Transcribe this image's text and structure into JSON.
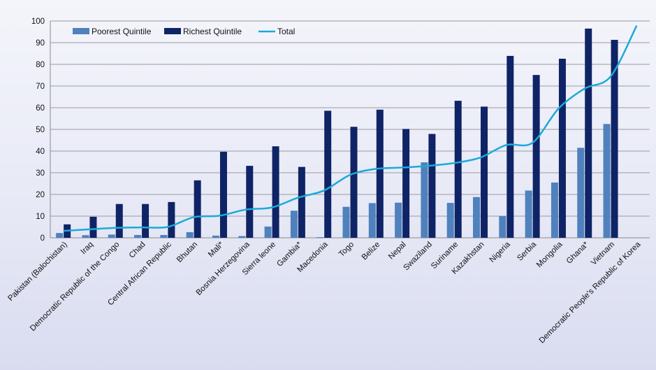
{
  "chart_data": {
    "type": "bar",
    "title": "",
    "xlabel": "",
    "ylabel": "",
    "ylim": [
      0,
      100
    ],
    "yticks": [
      0,
      10,
      20,
      30,
      40,
      50,
      60,
      70,
      80,
      90,
      100
    ],
    "grid": true,
    "legend_position": "top-left",
    "categories": [
      "Pakistan (Balochistan)",
      "Iraq",
      "Democratic Republic of the Congo",
      "Chad",
      "Central African Republic",
      "Bhutan",
      "Mali*",
      "Bosnia Herzegovina",
      "Sierra leone",
      "Gambia*",
      "Macedonia",
      "Togo",
      "Belize",
      "Nepal",
      "Swaziland",
      "Suriname",
      "Kazakhstan",
      "Nigeria",
      "Serbia",
      "Mongolia",
      "Ghana*",
      "Vietnam",
      "Democratic People's Republic of Korea"
    ],
    "series": [
      {
        "name": "Poorest Quintile",
        "type": "bar",
        "color": "#4f81bd",
        "values": [
          2.2,
          1.2,
          1.5,
          1.3,
          1.3,
          2.6,
          1.0,
          0.8,
          5.2,
          12.5,
          0.3,
          14.3,
          16.0,
          16.2,
          34.8,
          16.1,
          18.8,
          10.0,
          21.8,
          25.5,
          41.5,
          52.5,
          null
        ]
      },
      {
        "name": "Richest Quintile",
        "type": "bar",
        "color": "#0f2466",
        "values": [
          6.2,
          9.7,
          15.6,
          15.6,
          16.5,
          26.5,
          39.7,
          33.2,
          42.2,
          32.7,
          58.6,
          51.2,
          59.1,
          50.2,
          47.9,
          63.2,
          60.5,
          83.9,
          75.1,
          82.6,
          96.5,
          91.3,
          null
        ]
      },
      {
        "name": "Total",
        "type": "line",
        "color": "#1ca9da",
        "values": [
          3.2,
          3.9,
          4.6,
          4.8,
          5.0,
          9.5,
          10.2,
          13.0,
          14.0,
          18.5,
          21.8,
          29.0,
          31.8,
          32.4,
          33.2,
          34.5,
          37.0,
          42.8,
          43.8,
          59.6,
          68.8,
          74.4,
          97.9
        ]
      }
    ]
  }
}
